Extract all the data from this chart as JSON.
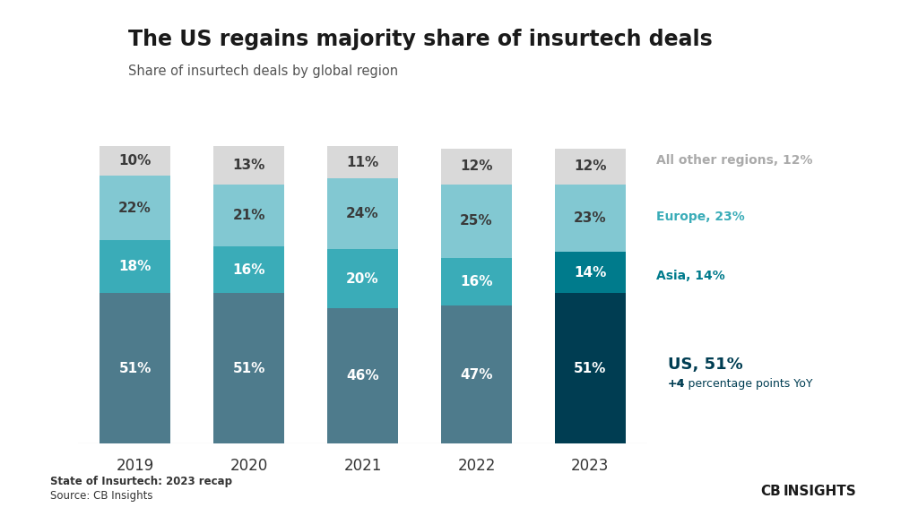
{
  "years": [
    "2019",
    "2020",
    "2021",
    "2022",
    "2023"
  ],
  "segments": {
    "US": [
      51,
      51,
      46,
      47,
      51
    ],
    "Asia": [
      18,
      16,
      20,
      16,
      14
    ],
    "Europe": [
      22,
      21,
      24,
      25,
      23
    ],
    "All other regions": [
      10,
      13,
      11,
      12,
      12
    ]
  },
  "colors": {
    "US_historical": "#4e7b8c",
    "US_2023": "#003d52",
    "Asia_historical": "#3aacb8",
    "Asia_2023": "#007b8c",
    "Europe_historical": "#82c8d2",
    "Europe_2023": "#82c8d2",
    "Other_historical": "#d9d9d9",
    "Other_2023": "#d9d9d9"
  },
  "label_colors": {
    "US_historical": "#ffffff",
    "US_2023": "#ffffff",
    "Asia_historical": "#ffffff",
    "Asia_2023": "#ffffff",
    "Europe_historical": "#3a3a3a",
    "Europe_2023": "#3a3a3a",
    "Other_historical": "#3a3a3a",
    "Other_2023": "#3a3a3a"
  },
  "title": "The US regains majority share of insurtech deals",
  "subtitle": "Share of insurtech deals by global region",
  "legend_items": [
    {
      "label": "All other regions, 12%",
      "color": "#aaaaaa"
    },
    {
      "label": "Europe, 23%",
      "color": "#3aacb8"
    },
    {
      "label": "Asia, 14%",
      "color": "#007b8c"
    }
  ],
  "us_box_line1": "US, 51%",
  "us_box_line2": "+4 percentage points YoY",
  "us_box_color": "#003d52",
  "footer_bold": "State of Insurtech: 2023 recap",
  "footer_normal": "Source: CB Insights",
  "background_color": "#ffffff",
  "bar_width": 0.62
}
